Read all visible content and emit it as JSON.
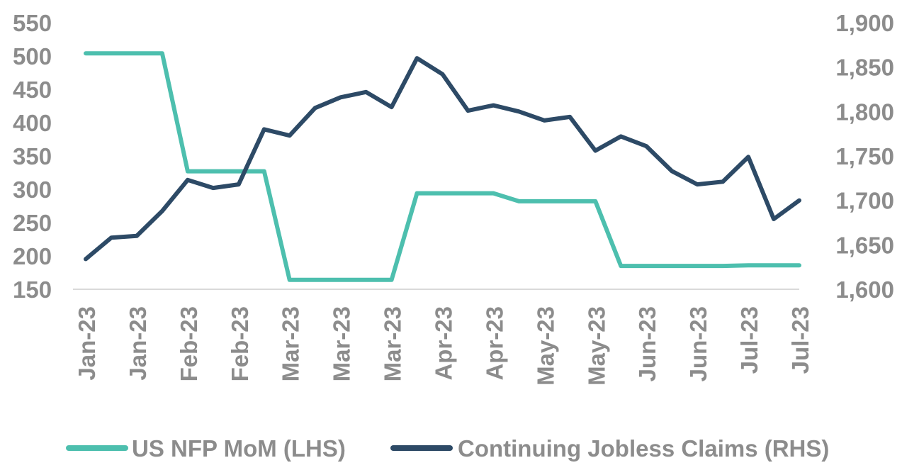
{
  "chart_data": {
    "type": "line",
    "categories": [
      "Jan-23",
      "Jan-23",
      "Jan-23",
      "Jan-23",
      "Feb-23",
      "Feb-23",
      "Feb-23",
      "Feb-23",
      "Mar-23",
      "Mar-23",
      "Mar-23",
      "Mar-23",
      "Mar-23",
      "Apr-23",
      "Apr-23",
      "Apr-23",
      "Apr-23",
      "May-23",
      "May-23",
      "May-23",
      "May-23",
      "Jun-23",
      "Jun-23",
      "Jun-23",
      "Jun-23",
      "Jun-23",
      "Jul-23",
      "Jul-23",
      "Jul-23"
    ],
    "x_tick_labels": [
      "Jan-23",
      "Jan-23",
      "Feb-23",
      "Feb-23",
      "Mar-23",
      "Mar-23",
      "Mar-23",
      "Apr-23",
      "Apr-23",
      "May-23",
      "May-23",
      "Jun-23",
      "Jun-23",
      "Jul-23",
      "Jul-23"
    ],
    "series": [
      {
        "name": "US NFP MoM (LHS)",
        "axis": "left",
        "color": "#4dbfae",
        "values": [
          504,
          504,
          504,
          504,
          327,
          327,
          327,
          327,
          164,
          164,
          164,
          164,
          164,
          294,
          294,
          294,
          294,
          282,
          282,
          282,
          282,
          185,
          185,
          185,
          185,
          185,
          186,
          186,
          186
        ]
      },
      {
        "name": "Continuing Jobless Claims (RHS)",
        "axis": "right",
        "color": "#2d4a66",
        "values": [
          1634,
          1658,
          1660,
          1688,
          1723,
          1714,
          1718,
          1780,
          1773,
          1804,
          1816,
          1822,
          1805,
          1860,
          1842,
          1801,
          1807,
          1800,
          1790,
          1794,
          1756,
          1772,
          1761,
          1733,
          1718,
          1721,
          1749,
          1679,
          1700
        ]
      }
    ],
    "y_left": {
      "ylim": [
        150,
        550
      ],
      "ticks": [
        "150",
        "200",
        "250",
        "300",
        "350",
        "400",
        "450",
        "500",
        "550"
      ]
    },
    "y_right": {
      "ylim": [
        1600,
        1900
      ],
      "ticks": [
        "1,600",
        "1,650",
        "1,700",
        "1,750",
        "1,800",
        "1,850",
        "1,900"
      ]
    },
    "grid": false,
    "legend": "bottom"
  }
}
